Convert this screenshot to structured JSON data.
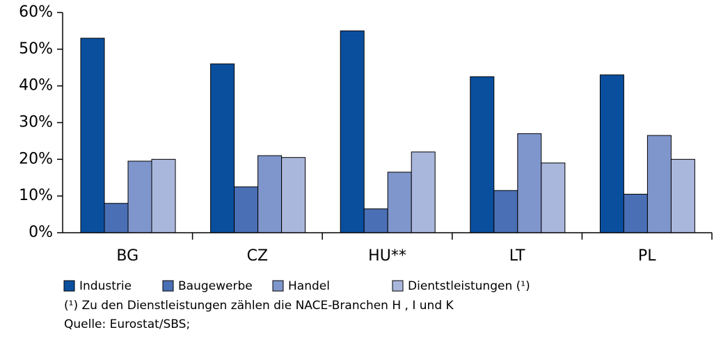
{
  "chart_data": {
    "type": "bar",
    "categories": [
      "BG",
      "CZ",
      "HU**",
      "LT",
      "PL"
    ],
    "series": [
      {
        "name": "Industrie",
        "color": "#0a4f9e",
        "values": [
          53,
          46,
          55,
          42.5,
          43
        ]
      },
      {
        "name": "Baugewerbe",
        "color": "#4a6fb5",
        "values": [
          8,
          12.5,
          6.5,
          11.5,
          10.5
        ]
      },
      {
        "name": "Handel",
        "color": "#7f96cc",
        "values": [
          19.5,
          21,
          16.5,
          27,
          26.5
        ]
      },
      {
        "name": "Dientstleistungen (¹)",
        "color": "#aab7dd",
        "values": [
          20,
          20.5,
          22,
          19,
          20
        ]
      }
    ],
    "ylim": [
      0,
      60
    ],
    "yticks": [
      {
        "value": 0,
        "label": "0%"
      },
      {
        "value": 10,
        "label": "10%"
      },
      {
        "value": 20,
        "label": "20%"
      },
      {
        "value": 30,
        "label": "30%"
      },
      {
        "value": 40,
        "label": "40%"
      },
      {
        "value": 50,
        "label": "50%"
      },
      {
        "value": 60,
        "label": "60%"
      }
    ],
    "legend": "bottom",
    "annotations": [
      "(¹)  Zu den Dienstleistungen zählen die NACE-Branchen H , I und K",
      "Quelle: Eurostat/SBS;"
    ]
  }
}
